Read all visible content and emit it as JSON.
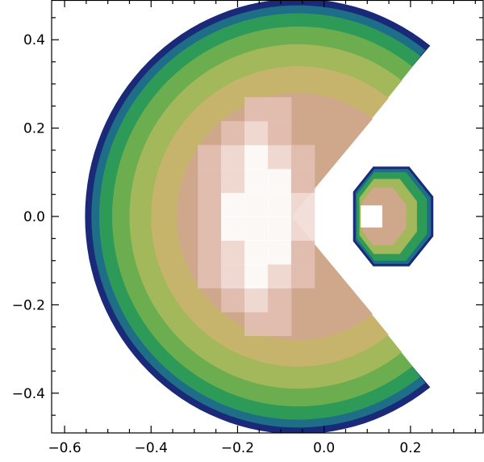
{
  "chart_data": {
    "type": "heatmap",
    "title": "",
    "xlabel": "",
    "ylabel": "",
    "xlim": [
      -0.63,
      0.37
    ],
    "ylim": [
      -0.49,
      0.49
    ],
    "x_tick_labels": [
      "−0.6",
      "−0.4",
      "−0.2",
      "0.0",
      "0.2"
    ],
    "x_tick_values": [
      -0.6,
      -0.4,
      -0.2,
      0.0,
      0.2
    ],
    "y_tick_labels": [
      "−0.4",
      "−0.2",
      "0.0",
      "0.2",
      "0.4"
    ],
    "y_tick_values": [
      -0.4,
      -0.2,
      0.0,
      0.2,
      0.4
    ],
    "grid": false,
    "colormap": [
      "#1a2a78",
      "#1d6e86",
      "#2e9a58",
      "#6cae4f",
      "#a3b85a",
      "#c6b46c",
      "#cfa88c",
      "#e2bfb2",
      "#f2dcd6",
      "#ffffff"
    ],
    "main_lobe": {
      "center": [
        -0.06,
        0.0
      ],
      "outer_radius": 0.49,
      "cutout_opening_half_angle_deg": 52,
      "cutout_apex_x": -0.075,
      "peak_center": [
        -0.15,
        0.0
      ]
    },
    "satellite_lobe": {
      "x_range": [
        0.07,
        0.25
      ],
      "y_range": [
        -0.11,
        0.11
      ],
      "peak_center": [
        0.11,
        0.0
      ]
    },
    "colors": {
      "outline": "#1a2a78",
      "axis": "#000000",
      "background": "#ffffff"
    }
  }
}
